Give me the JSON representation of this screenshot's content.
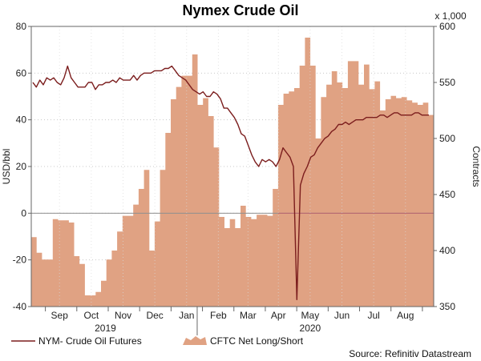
{
  "chart_data": {
    "type": "area",
    "title": "Nymex Crude Oil",
    "ylabel_left": "USD/bbl",
    "ylabel_right": "Contracts",
    "right_multiplier": "x 1,000",
    "source": "Source: Refinitiv Datastream",
    "left_axis": {
      "min": -40,
      "max": 80,
      "ticks": [
        "-40",
        "-20",
        "0",
        "20",
        "40",
        "60",
        "80"
      ]
    },
    "right_axis": {
      "min": 350,
      "max": 600,
      "ticks": [
        "350",
        "400",
        "450",
        "500",
        "550",
        "600"
      ]
    },
    "x_axis": {
      "months": [
        {
          "label": "Sep",
          "week": 4
        },
        {
          "label": "Oct",
          "week": 8.5
        },
        {
          "label": "Nov",
          "week": 13
        },
        {
          "label": "Dec",
          "week": 17.5
        },
        {
          "label": "Jan",
          "week": 22
        },
        {
          "label": "Feb",
          "week": 26.5
        },
        {
          "label": "Mar",
          "week": 30.7
        },
        {
          "label": "Apr",
          "week": 35
        },
        {
          "label": "May",
          "week": 39.5
        },
        {
          "label": "Jun",
          "week": 44
        },
        {
          "label": "Jul",
          "week": 48.5
        },
        {
          "label": "Aug",
          "week": 53
        }
      ],
      "years": [
        {
          "label": "2019",
          "week": 10.5
        },
        {
          "label": "2020",
          "week": 39.5
        }
      ],
      "week_range": [
        0,
        57
      ]
    },
    "grid": true,
    "legend_position": "bottom-left",
    "series": [
      {
        "name": "NYM- Crude Oil Futures",
        "kind": "line",
        "axis": "left",
        "color": "#7b1d1d",
        "values": [
          [
            0,
            56
          ],
          [
            1,
            54
          ],
          [
            2,
            57
          ],
          [
            3,
            55
          ],
          [
            4,
            58
          ],
          [
            5,
            57
          ],
          [
            6,
            58
          ],
          [
            7,
            56
          ],
          [
            8,
            55
          ],
          [
            9,
            58
          ],
          [
            10,
            63
          ],
          [
            11,
            58
          ],
          [
            12,
            56
          ],
          [
            13,
            54
          ],
          [
            14,
            54
          ],
          [
            15,
            54
          ],
          [
            16,
            56
          ],
          [
            17,
            56
          ],
          [
            18,
            53
          ],
          [
            19,
            55
          ],
          [
            20,
            55
          ],
          [
            21,
            56
          ],
          [
            22,
            56
          ],
          [
            23,
            57
          ],
          [
            24,
            56
          ],
          [
            25,
            58
          ],
          [
            26,
            57
          ],
          [
            27,
            57
          ],
          [
            28,
            57
          ],
          [
            29,
            59
          ],
          [
            30,
            57
          ],
          [
            31,
            59
          ],
          [
            32,
            60
          ],
          [
            33,
            60
          ],
          [
            34,
            60
          ],
          [
            35,
            61
          ],
          [
            36,
            61
          ],
          [
            37,
            61
          ],
          [
            38,
            62
          ],
          [
            39,
            62
          ],
          [
            40,
            63
          ],
          [
            41,
            61
          ],
          [
            42,
            59
          ],
          [
            43,
            58
          ],
          [
            44,
            57
          ],
          [
            45,
            55
          ],
          [
            46,
            53
          ],
          [
            47,
            52
          ],
          [
            48,
            51
          ],
          [
            49,
            52
          ],
          [
            50,
            50
          ],
          [
            51,
            50
          ],
          [
            52,
            52
          ],
          [
            53,
            51
          ],
          [
            54,
            49
          ],
          [
            55,
            45
          ],
          [
            56,
            45
          ],
          [
            57,
            43
          ],
          [
            58,
            41
          ],
          [
            59,
            38
          ],
          [
            60,
            34
          ],
          [
            61,
            33
          ],
          [
            62,
            29
          ],
          [
            63,
            25
          ],
          [
            64,
            22
          ],
          [
            65,
            20
          ],
          [
            66,
            23
          ],
          [
            67,
            22
          ],
          [
            68,
            23
          ],
          [
            69,
            22
          ],
          [
            70,
            20
          ],
          [
            71,
            23
          ],
          [
            72,
            28
          ],
          [
            73,
            26
          ],
          [
            74,
            24
          ],
          [
            75,
            20
          ],
          [
            76,
            -37
          ],
          [
            77,
            12
          ],
          [
            78,
            17
          ],
          [
            79,
            20
          ],
          [
            80,
            24
          ],
          [
            81,
            25
          ],
          [
            82,
            28
          ],
          [
            83,
            30
          ],
          [
            84,
            32
          ],
          [
            85,
            33
          ],
          [
            86,
            35
          ],
          [
            87,
            36
          ],
          [
            88,
            38
          ],
          [
            89,
            38
          ],
          [
            90,
            39
          ],
          [
            91,
            38
          ],
          [
            92,
            39
          ],
          [
            93,
            40
          ],
          [
            94,
            40
          ],
          [
            95,
            40
          ],
          [
            96,
            41
          ],
          [
            97,
            41
          ],
          [
            98,
            41
          ],
          [
            99,
            41
          ],
          [
            100,
            42
          ],
          [
            101,
            42
          ],
          [
            102,
            41
          ],
          [
            103,
            42
          ],
          [
            104,
            43
          ],
          [
            105,
            43
          ],
          [
            106,
            42
          ],
          [
            107,
            42
          ],
          [
            108,
            42
          ],
          [
            109,
            42
          ],
          [
            110,
            43
          ],
          [
            111,
            43
          ],
          [
            112,
            42
          ],
          [
            113,
            42
          ],
          [
            114,
            42
          ]
        ]
      },
      {
        "name": "CFTC Net Long/Short",
        "kind": "area",
        "axis": "right",
        "color": "#e0a283",
        "step_values": [
          412,
          398,
          392,
          392,
          428,
          427,
          427,
          425,
          395,
          388,
          360,
          360,
          363,
          373,
          392,
          400,
          417,
          431,
          431,
          441,
          455,
          472,
          400,
          426,
          472,
          505,
          535,
          546,
          556,
          556,
          575,
          530,
          536,
          520,
          492,
          430,
          420,
          428,
          420,
          440,
          430,
          428,
          432,
          432,
          431,
          455,
          530,
          540,
          542,
          545,
          565,
          590,
          565,
          500,
          537,
          548,
          560,
          550,
          545,
          569,
          569,
          548,
          566,
          544,
          551,
          525,
          535,
          538,
          536,
          537,
          534,
          532,
          530,
          532,
          521
        ],
        "step_weeks": [
          0,
          1,
          2,
          3,
          4,
          5,
          6,
          7,
          8,
          9,
          10,
          11,
          12,
          13,
          14,
          15,
          16,
          17,
          18,
          19,
          20,
          21,
          22,
          23,
          24,
          25,
          26,
          27,
          28,
          29,
          30,
          31,
          32,
          33,
          34,
          35,
          36,
          37,
          38,
          39,
          40,
          41,
          42,
          43,
          44,
          45,
          46,
          47,
          48,
          49,
          50,
          51,
          52,
          53,
          54,
          55,
          56,
          57,
          58,
          59,
          60,
          61,
          62,
          63,
          64,
          65,
          66,
          67,
          68,
          69,
          70,
          71,
          72,
          73,
          74
        ]
      }
    ]
  },
  "legend": {
    "items": [
      {
        "label": "NYM- Crude Oil Futures",
        "kind": "line",
        "color": "#7b1d1d"
      },
      {
        "label": "CFTC Net Long/Short",
        "kind": "area",
        "color": "#e0a283"
      }
    ]
  }
}
